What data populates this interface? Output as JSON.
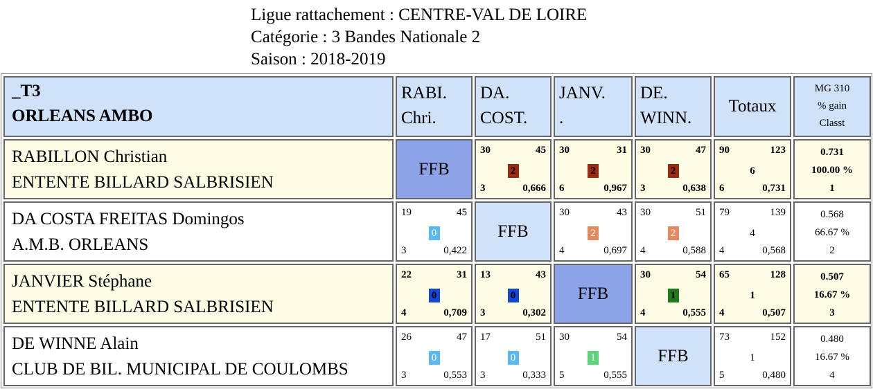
{
  "header": {
    "ligue": "Ligue rattachement : CENTRE-VAL DE LOIRE",
    "categorie": "Catégorie :  3 Bandes Nationale 2",
    "saison": "Saison : 2018-2019"
  },
  "table": {
    "group": "_T3",
    "club": "ORLEANS AMBO",
    "cols": [
      "RABI.\nChri.",
      "DA.\nCOST.",
      "JANV.\n.",
      "DE.\nWINN."
    ],
    "totaux": "Totaux",
    "mg_lines": [
      "MG 310",
      "% gain",
      "Classt"
    ],
    "ffb": "FFB",
    "colors": {
      "pts2_dark": "#9b2a12",
      "pts2_light": "#e48a5e",
      "pts0_dark": "#1545d8",
      "pts0_light": "#5ab8f2",
      "pts1_dark": "#1f7a1f",
      "pts1_light": "#5ed37a"
    },
    "rows": [
      {
        "name": "RABILLON Christian",
        "club": "ENTENTE BILLARD SALBRISIEN",
        "bold": false,
        "matches": [
          null,
          {
            "a": "30",
            "b": "45",
            "pts": "2",
            "c": "3",
            "d": "0,666"
          },
          {
            "a": "30",
            "b": "31",
            "pts": "2",
            "c": "6",
            "d": "0,967"
          },
          {
            "a": "30",
            "b": "47",
            "pts": "2",
            "c": "3",
            "d": "0,638"
          }
        ],
        "tot": {
          "a": "90",
          "b": "123",
          "mid": "6",
          "c": "6",
          "d": "0,731"
        },
        "mg": [
          "0.731",
          "100.00 %",
          "1"
        ]
      },
      {
        "name": "DA COSTA FREITAS Domingos",
        "club": "A.M.B. ORLEANS",
        "bold": false,
        "matches": [
          {
            "a": "19",
            "b": "45",
            "pts": "0",
            "c": "3",
            "d": "0,422"
          },
          null,
          {
            "a": "30",
            "b": "43",
            "pts": "2",
            "c": "4",
            "d": "0,697"
          },
          {
            "a": "30",
            "b": "51",
            "pts": "2",
            "c": "4",
            "d": "0,588"
          }
        ],
        "tot": {
          "a": "79",
          "b": "139",
          "mid": "4",
          "c": "4",
          "d": "0,568"
        },
        "mg": [
          "0.568",
          "66.67 %",
          "2"
        ]
      },
      {
        "name": "JANVIER Stéphane",
        "club": "ENTENTE BILLARD SALBRISIEN",
        "bold": false,
        "matches": [
          {
            "a": "22",
            "b": "31",
            "pts": "0",
            "c": "4",
            "d": "0,709"
          },
          {
            "a": "13",
            "b": "43",
            "pts": "0",
            "c": "3",
            "d": "0,302"
          },
          null,
          {
            "a": "30",
            "b": "54",
            "pts": "1",
            "c": "4",
            "d": "0,555"
          }
        ],
        "tot": {
          "a": "65",
          "b": "128",
          "mid": "1",
          "c": "4",
          "d": "0,507"
        },
        "mg": [
          "0.507",
          "16.67 %",
          "3"
        ]
      },
      {
        "name": "DE WINNE Alain",
        "club": "CLUB DE BIL. MUNICIPAL DE COULOMBS",
        "bold": false,
        "matches": [
          {
            "a": "26",
            "b": "47",
            "pts": "0",
            "c": "3",
            "d": "0,553"
          },
          {
            "a": "17",
            "b": "51",
            "pts": "0",
            "c": "3",
            "d": "0,333"
          },
          {
            "a": "30",
            "b": "54",
            "pts": "1",
            "c": "5",
            "d": "0,555"
          },
          null
        ],
        "tot": {
          "a": "73",
          "b": "152",
          "mid": "1",
          "c": "5",
          "d": "0,480"
        },
        "mg": [
          "0.480",
          "16.67 %",
          "4"
        ]
      }
    ]
  }
}
